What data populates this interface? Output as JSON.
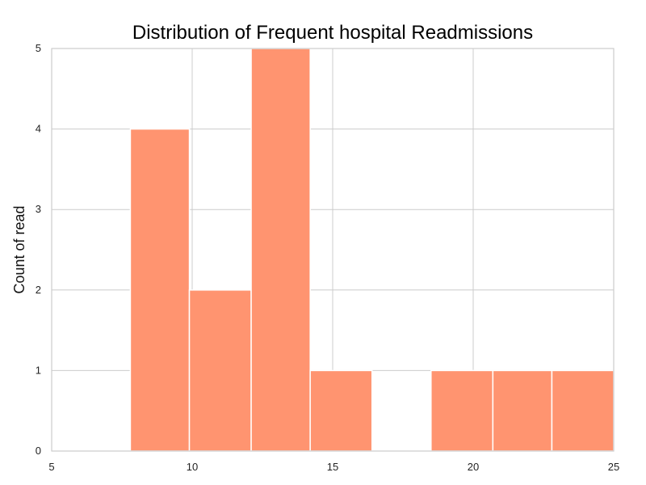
{
  "chart_data": {
    "type": "bar",
    "title": "Distribution of Frequent hospital Readmissions",
    "xlabel": "",
    "ylabel": "Count of read",
    "xlim": [
      5,
      25
    ],
    "ylim": [
      0,
      5
    ],
    "x_ticks": [
      5,
      10,
      15,
      20,
      25
    ],
    "y_ticks": [
      0,
      1,
      2,
      3,
      4,
      5
    ],
    "grid": true,
    "bar_color": "#ff9470",
    "bins": [
      {
        "start": 7.8,
        "end": 9.9,
        "count": 4
      },
      {
        "start": 9.9,
        "end": 12.1,
        "count": 2
      },
      {
        "start": 12.1,
        "end": 14.2,
        "count": 5
      },
      {
        "start": 14.2,
        "end": 16.4,
        "count": 1
      },
      {
        "start": 16.4,
        "end": 18.5,
        "count": 0
      },
      {
        "start": 18.5,
        "end": 20.7,
        "count": 1
      },
      {
        "start": 20.7,
        "end": 22.8,
        "count": 1
      },
      {
        "start": 22.8,
        "end": 25.0,
        "count": 1
      }
    ]
  }
}
